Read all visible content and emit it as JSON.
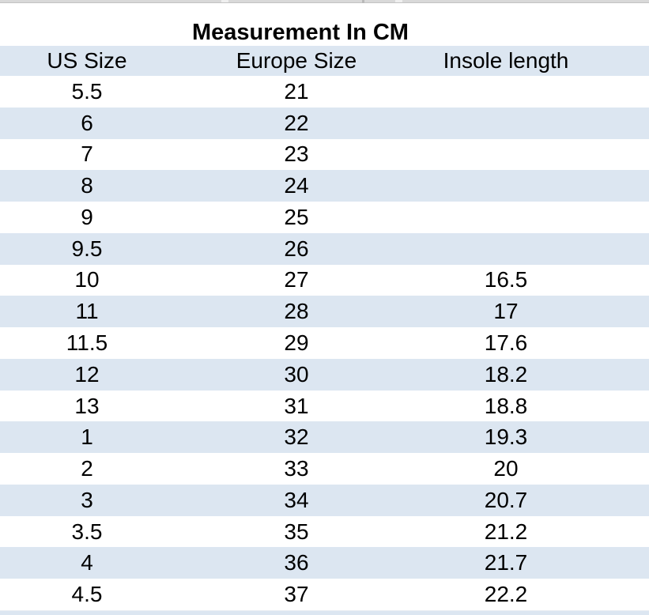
{
  "title": "Measurement In CM",
  "chart_data": {
    "type": "table",
    "title": "Measurement In CM",
    "columns": [
      "US Size",
      "Europe Size",
      "Insole length"
    ],
    "rows": [
      [
        "5.5",
        "21",
        ""
      ],
      [
        "6",
        "22",
        ""
      ],
      [
        "7",
        "23",
        ""
      ],
      [
        "8",
        "24",
        ""
      ],
      [
        "9",
        "25",
        ""
      ],
      [
        "9.5",
        "26",
        ""
      ],
      [
        "10",
        "27",
        "16.5"
      ],
      [
        "11",
        "28",
        "17"
      ],
      [
        "11.5",
        "29",
        "17.6"
      ],
      [
        "12",
        "30",
        "18.2"
      ],
      [
        "13",
        "31",
        "18.8"
      ],
      [
        "1",
        "32",
        "19.3"
      ],
      [
        "2",
        "33",
        "20"
      ],
      [
        "3",
        "34",
        "20.7"
      ],
      [
        "3.5",
        "35",
        "21.2"
      ],
      [
        "4",
        "36",
        "21.7"
      ],
      [
        "4.5",
        "37",
        "22.2"
      ]
    ],
    "layout_hints": {
      "row_striping": "white and light blue alternating, header and even rows light blue",
      "text_alignment": "center"
    }
  },
  "colors": {
    "row_alt": "#dce6f1",
    "top_strip": "#d9d9d9",
    "text": "#000000",
    "background": "#ffffff"
  }
}
